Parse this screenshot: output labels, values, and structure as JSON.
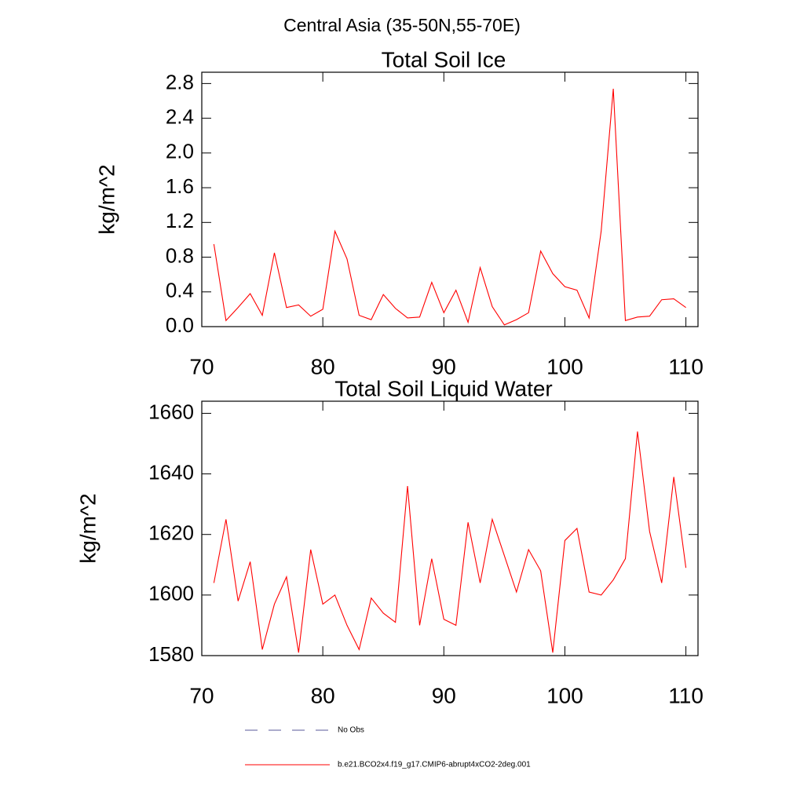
{
  "title": "Central Asia (35-50N,55-70E)",
  "obs_legend": {
    "name": "No Obs",
    "color": "#5a5a9a"
  },
  "chart_data": [
    {
      "type": "line",
      "title": "Total Soil Ice",
      "ylabel": "kg/m^2",
      "x": [
        71,
        72,
        73,
        74,
        75,
        76,
        77,
        78,
        79,
        80,
        81,
        82,
        83,
        84,
        85,
        86,
        87,
        88,
        89,
        90,
        91,
        92,
        93,
        94,
        95,
        96,
        97,
        98,
        99,
        100,
        101,
        102,
        103,
        104,
        105,
        106,
        107,
        108,
        109,
        110
      ],
      "series": [
        {
          "name": "b.e21.BCO2x4.f19_g17.CMIP6-abrupt4xCO2-2deg.001",
          "color": "#ff0000",
          "values": [
            0.95,
            0.07,
            0.22,
            0.38,
            0.13,
            0.85,
            0.22,
            0.25,
            0.12,
            0.2,
            1.1,
            0.78,
            0.13,
            0.08,
            0.37,
            0.21,
            0.1,
            0.11,
            0.51,
            0.16,
            0.42,
            0.05,
            0.68,
            0.23,
            0.02,
            0.08,
            0.16,
            0.87,
            0.61,
            0.46,
            0.42,
            0.1,
            1.1,
            2.74,
            0.07,
            0.11,
            0.12,
            0.31,
            0.32,
            0.22
          ]
        }
      ],
      "xlim": [
        70,
        111
      ],
      "xticks": [
        70,
        80,
        90,
        100,
        110
      ],
      "ylim": [
        0,
        2.93
      ],
      "yticks": [
        {
          "value": 0,
          "label": "0.0"
        },
        0.4,
        0.8,
        1.2,
        1.6,
        {
          "value": 2,
          "label": "2.0"
        },
        2.4,
        2.8
      ]
    },
    {
      "type": "line",
      "title": "Total Soil Liquid Water",
      "ylabel": "kg/m^2",
      "x": [
        71,
        72,
        73,
        74,
        75,
        76,
        77,
        78,
        79,
        80,
        81,
        82,
        83,
        84,
        85,
        86,
        87,
        88,
        89,
        90,
        91,
        92,
        93,
        94,
        95,
        96,
        97,
        98,
        99,
        100,
        101,
        102,
        103,
        104,
        105,
        106,
        107,
        108,
        109,
        110
      ],
      "series": [
        {
          "name": "b.e21.BCO2x4.f19_g17.CMIP6-abrupt4xCO2-2deg.001",
          "color": "#ff0000",
          "values": [
            1604,
            1625,
            1598,
            1611,
            1582,
            1597,
            1606,
            1581,
            1615,
            1597,
            1600,
            1590,
            1582,
            1599,
            1594,
            1591,
            1636,
            1590,
            1612,
            1592,
            1590,
            1624,
            1604,
            1625,
            1613,
            1601,
            1615,
            1608,
            1581,
            1618,
            1622,
            1601,
            1600,
            1605,
            1612,
            1654,
            1621,
            1604,
            1639,
            1609
          ]
        }
      ],
      "xlim": [
        70,
        111
      ],
      "xticks": [
        70,
        80,
        90,
        100,
        110
      ],
      "ylim": [
        1580,
        1664
      ],
      "yticks": [
        1580,
        1600,
        1620,
        1640,
        1660
      ]
    }
  ]
}
